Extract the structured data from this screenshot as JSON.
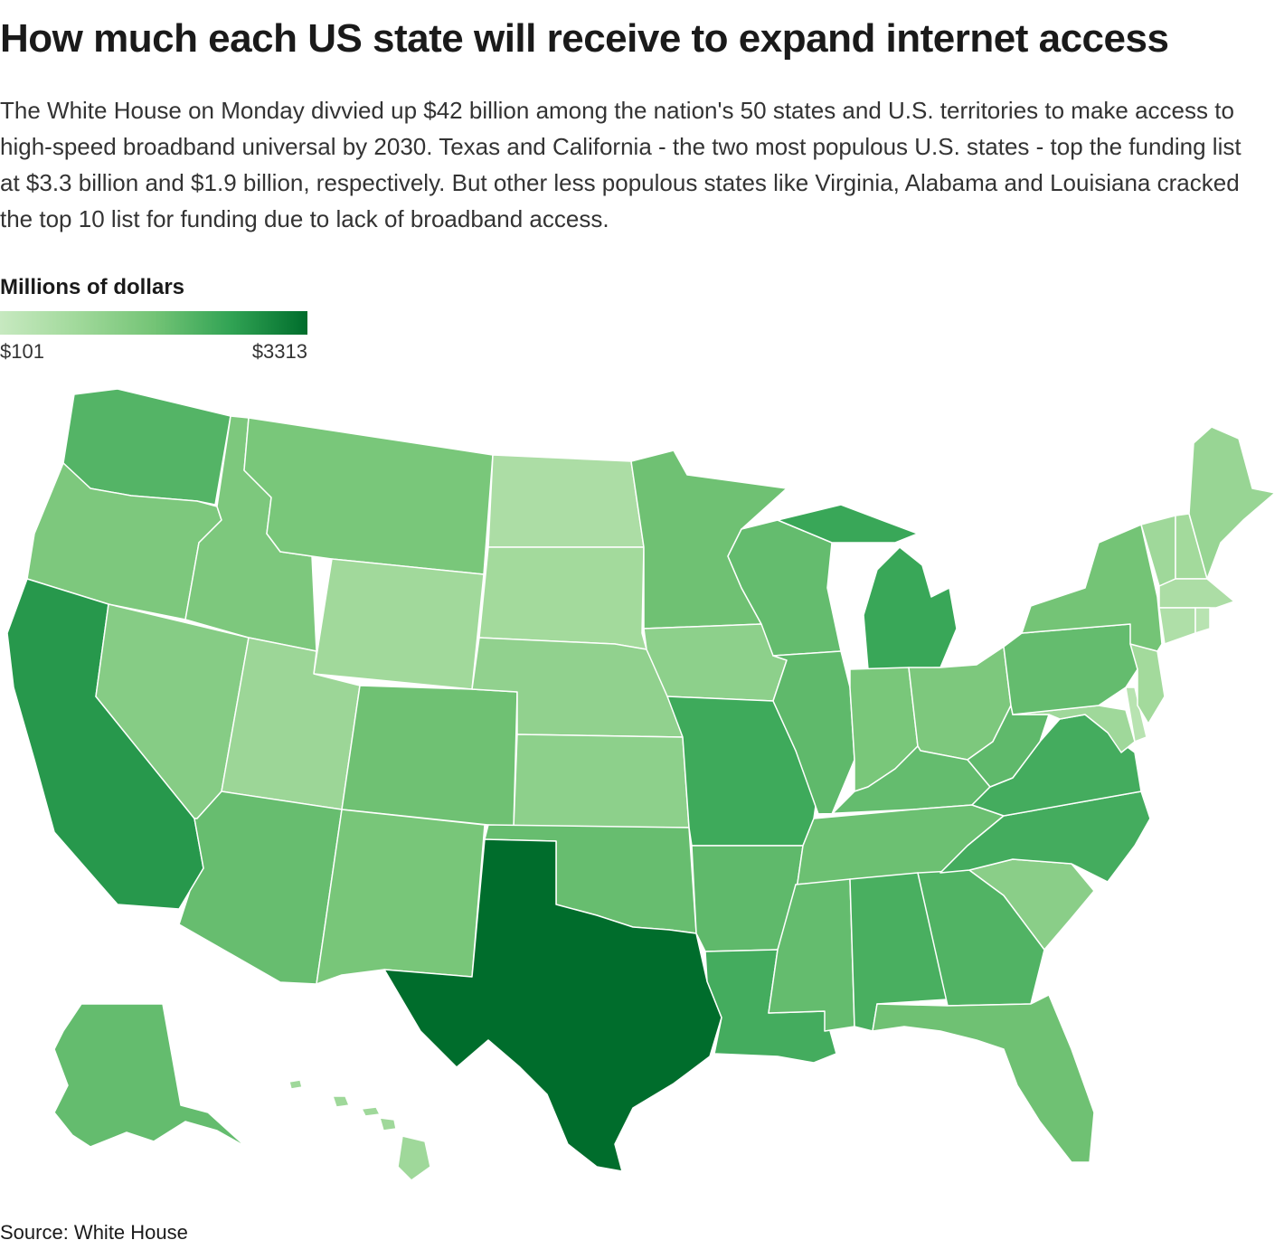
{
  "header": {
    "title": "How much each US state will receive to expand internet access",
    "dek": "The White House on Monday divvied up $42 billion among the nation's 50 states and U.S. territories to make access to high-speed broadband universal by 2030. Texas and California - the two most populous U.S. states - top the funding list at $3.3 billion and $1.9 billion, respectively. But other less populous states like Virginia, Alabama and Louisiana cracked the top 10 list for funding due to lack of broadband access."
  },
  "legend": {
    "title": "Millions of dollars",
    "min_label": "$101",
    "max_label": "$3313",
    "min": 101,
    "max": 3313,
    "colors": [
      "#c7e9c0",
      "#a1d99b",
      "#74c476",
      "#31a354",
      "#006d2c"
    ]
  },
  "footer": {
    "source": "Source: White House"
  },
  "map": {
    "shade": {
      "WA": 0.62,
      "OR": 0.45,
      "CA": 0.8,
      "NV": 0.4,
      "ID": 0.45,
      "MT": 0.47,
      "WY": 0.25,
      "UT": 0.28,
      "AZ": 0.55,
      "CO": 0.52,
      "NM": 0.48,
      "ND": 0.18,
      "SD": 0.24,
      "NE": 0.34,
      "KS": 0.36,
      "OK": 0.55,
      "TX": 1.0,
      "MN": 0.52,
      "IA": 0.36,
      "MO": 0.7,
      "AR": 0.58,
      "LA": 0.68,
      "WI": 0.56,
      "IL": 0.58,
      "MI": 0.72,
      "IN": 0.47,
      "OH": 0.45,
      "KY": 0.56,
      "TN": 0.53,
      "MS": 0.56,
      "AL": 0.66,
      "GA": 0.63,
      "FL": 0.52,
      "SC": 0.38,
      "NC": 0.68,
      "VA": 0.68,
      "WV": 0.58,
      "PA": 0.56,
      "NY": 0.5,
      "VT": 0.26,
      "NH": 0.24,
      "ME": 0.3,
      "MA": 0.18,
      "CT": 0.16,
      "RI": 0.1,
      "NJ": 0.24,
      "DE": 0.1,
      "MD": 0.26,
      "AK": 0.56,
      "HI": 0.26
    }
  }
}
